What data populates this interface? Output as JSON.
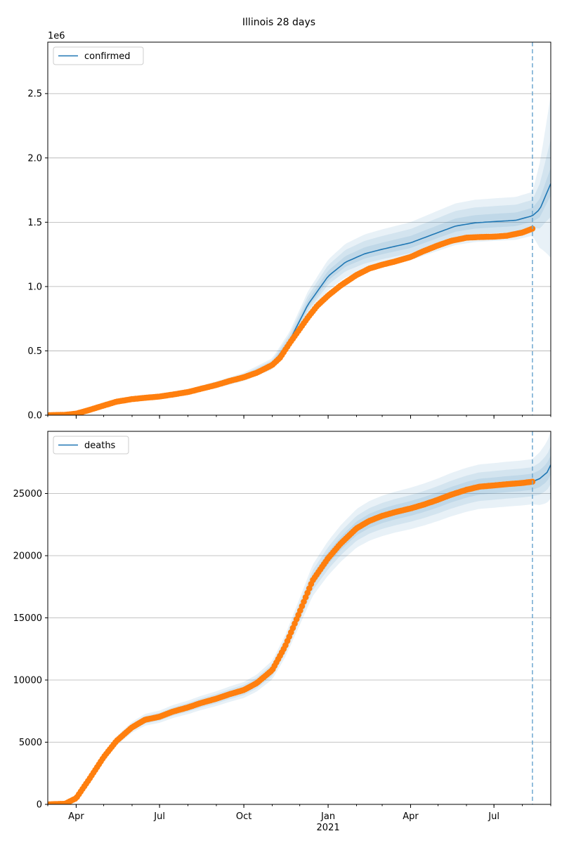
{
  "figure": {
    "title": "Illinois 28 days"
  },
  "colors": {
    "model": "#1f77b4",
    "observed": "#ff7f0e",
    "band": "#1f77b4",
    "grid": "#b0b0b0",
    "forecast_line": "#6fa8d0"
  },
  "chart_data": [
    {
      "type": "line",
      "title": "",
      "xlabel": "",
      "ylabel": "",
      "y_scale_label": "1e6",
      "legend": {
        "position": "top-left",
        "entries": [
          "confirmed"
        ]
      },
      "grid": {
        "x": false,
        "y": true
      },
      "x_range": [
        "2020-03-01",
        "2021-09-01"
      ],
      "ylim": [
        0,
        2900000
      ],
      "x_ticks": [
        {
          "date": "2020-04-01",
          "label": "Apr"
        },
        {
          "date": "2020-07-01",
          "label": "Jul"
        },
        {
          "date": "2020-10-01",
          "label": "Oct"
        },
        {
          "date": "2021-01-01",
          "label": "Jan"
        },
        {
          "date": "2021-04-01",
          "label": "Apr"
        },
        {
          "date": "2021-07-01",
          "label": "Jul"
        }
      ],
      "x_year_label": {
        "date": "2021-01-01",
        "label": "2021"
      },
      "y_ticks": [
        {
          "value": 0,
          "label": "0.0"
        },
        {
          "value": 500000,
          "label": "0.5"
        },
        {
          "value": 1000000,
          "label": "1.0"
        },
        {
          "value": 1500000,
          "label": "1.5"
        },
        {
          "value": 2000000,
          "label": "2.0"
        },
        {
          "value": 2500000,
          "label": "2.5"
        }
      ],
      "forecast_start": "2021-08-12",
      "observed": {
        "dates": [
          "2020-03-01",
          "2020-03-20",
          "2020-04-01",
          "2020-04-15",
          "2020-05-01",
          "2020-05-15",
          "2020-06-01",
          "2020-06-15",
          "2020-07-01",
          "2020-07-15",
          "2020-08-01",
          "2020-08-15",
          "2020-09-01",
          "2020-09-15",
          "2020-10-01",
          "2020-10-15",
          "2020-11-01",
          "2020-11-10",
          "2020-11-20",
          "2020-12-01",
          "2020-12-10",
          "2020-12-20",
          "2021-01-01",
          "2021-01-15",
          "2021-02-01",
          "2021-02-15",
          "2021-03-01",
          "2021-03-15",
          "2021-04-01",
          "2021-04-15",
          "2021-05-01",
          "2021-05-15",
          "2021-06-01",
          "2021-06-15",
          "2021-07-01",
          "2021-07-15",
          "2021-08-01",
          "2021-08-12"
        ],
        "values": [
          0,
          3000,
          12000,
          40000,
          75000,
          105000,
          125000,
          135000,
          145000,
          160000,
          180000,
          205000,
          235000,
          265000,
          295000,
          330000,
          390000,
          450000,
          560000,
          670000,
          760000,
          850000,
          930000,
          1010000,
          1090000,
          1140000,
          1170000,
          1195000,
          1230000,
          1275000,
          1320000,
          1355000,
          1380000,
          1385000,
          1388000,
          1395000,
          1420000,
          1450000
        ]
      },
      "model": {
        "dates": [
          "2020-03-01",
          "2020-04-01",
          "2020-05-01",
          "2020-06-01",
          "2020-07-01",
          "2020-08-01",
          "2020-09-01",
          "2020-10-01",
          "2020-11-01",
          "2020-11-20",
          "2020-12-10",
          "2021-01-01",
          "2021-01-20",
          "2021-02-10",
          "2021-03-01",
          "2021-04-01",
          "2021-05-01",
          "2021-05-20",
          "2021-06-10",
          "2021-07-01",
          "2021-07-25",
          "2021-08-12",
          "2021-08-20",
          "2021-09-01"
        ],
        "values": [
          0,
          12000,
          75000,
          125000,
          145000,
          180000,
          235000,
          295000,
          395000,
          580000,
          860000,
          1080000,
          1190000,
          1255000,
          1290000,
          1340000,
          1420000,
          1470000,
          1495000,
          1505000,
          1515000,
          1550000,
          1600000,
          1800000
        ]
      },
      "bands": [
        {
          "name": "outer",
          "lower_pct": 0.9,
          "upper_pct": 1.12,
          "widen_after_forecast": 0.55
        },
        {
          "name": "middle",
          "lower_pct": 0.94,
          "upper_pct": 1.08,
          "widen_after_forecast": 0.35
        },
        {
          "name": "inner",
          "lower_pct": 0.97,
          "upper_pct": 1.04,
          "widen_after_forecast": 0.18
        }
      ]
    },
    {
      "type": "line",
      "title": "",
      "xlabel": "",
      "ylabel": "",
      "y_scale_label": "",
      "legend": {
        "position": "top-left",
        "entries": [
          "deaths"
        ]
      },
      "grid": {
        "x": false,
        "y": true
      },
      "x_range": [
        "2020-03-01",
        "2021-09-01"
      ],
      "ylim": [
        0,
        30000
      ],
      "x_ticks": [
        {
          "date": "2020-04-01",
          "label": "Apr"
        },
        {
          "date": "2020-07-01",
          "label": "Jul"
        },
        {
          "date": "2020-10-01",
          "label": "Oct"
        },
        {
          "date": "2021-01-01",
          "label": "Jan"
        },
        {
          "date": "2021-04-01",
          "label": "Apr"
        },
        {
          "date": "2021-07-01",
          "label": "Jul"
        }
      ],
      "x_year_label": {
        "date": "2021-01-01",
        "label": "2021"
      },
      "y_ticks": [
        {
          "value": 0,
          "label": "0"
        },
        {
          "value": 5000,
          "label": "5000"
        },
        {
          "value": 10000,
          "label": "10000"
        },
        {
          "value": 15000,
          "label": "15000"
        },
        {
          "value": 20000,
          "label": "20000"
        },
        {
          "value": 25000,
          "label": "25000"
        }
      ],
      "forecast_start": "2021-08-12",
      "observed": {
        "dates": [
          "2020-03-01",
          "2020-03-20",
          "2020-04-01",
          "2020-04-15",
          "2020-05-01",
          "2020-05-15",
          "2020-06-01",
          "2020-06-15",
          "2020-07-01",
          "2020-07-15",
          "2020-08-01",
          "2020-08-15",
          "2020-09-01",
          "2020-09-15",
          "2020-10-01",
          "2020-10-15",
          "2020-11-01",
          "2020-11-15",
          "2020-12-01",
          "2020-12-15",
          "2021-01-01",
          "2021-01-15",
          "2021-02-01",
          "2021-02-15",
          "2021-03-01",
          "2021-03-15",
          "2021-04-01",
          "2021-04-15",
          "2021-05-01",
          "2021-05-15",
          "2021-06-01",
          "2021-06-15",
          "2021-07-01",
          "2021-07-15",
          "2021-08-01",
          "2021-08-12"
        ],
        "values": [
          0,
          50,
          500,
          2000,
          3800,
          5100,
          6200,
          6800,
          7050,
          7450,
          7800,
          8150,
          8500,
          8850,
          9200,
          9750,
          10800,
          12700,
          15500,
          18000,
          19800,
          21000,
          22200,
          22800,
          23200,
          23500,
          23800,
          24100,
          24500,
          24900,
          25300,
          25550,
          25650,
          25750,
          25850,
          25950
        ]
      },
      "model": {
        "dates": [
          "2021-08-12",
          "2021-08-20",
          "2021-08-28",
          "2021-09-01"
        ],
        "values": [
          25950,
          26200,
          26700,
          27300
        ]
      },
      "bands": [
        {
          "name": "outer",
          "lower_pct": 0.93,
          "upper_pct": 1.07,
          "widen_after_forecast": 0.1
        },
        {
          "name": "middle",
          "lower_pct": 0.955,
          "upper_pct": 1.045,
          "widen_after_forecast": 0.06
        },
        {
          "name": "inner",
          "lower_pct": 0.975,
          "upper_pct": 1.025,
          "widen_after_forecast": 0.03
        }
      ]
    }
  ]
}
